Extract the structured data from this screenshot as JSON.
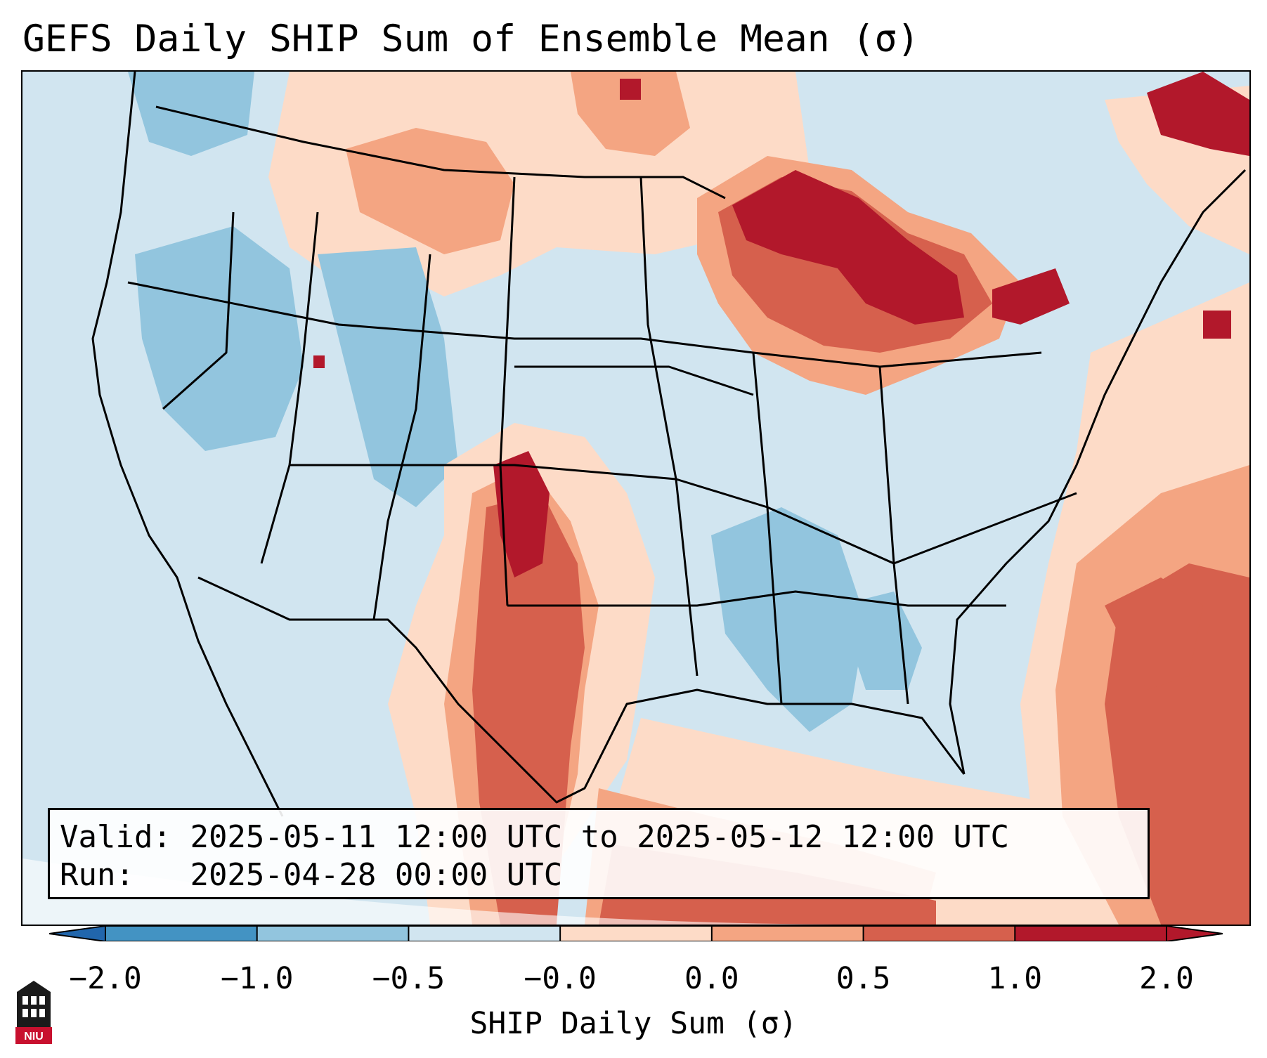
{
  "title": "GEFS Daily SHIP Sum of Ensemble Mean (σ)",
  "info": {
    "valid_label": "Valid:",
    "valid_value": "2025-05-11 12:00 UTC to 2025-05-12 12:00 UTC",
    "run_label": "Run:",
    "run_value": "2025-04-28 00:00 UTC"
  },
  "colorbar": {
    "label": "SHIP Daily Sum (σ)",
    "ticks": [
      "−2.0",
      "−1.0",
      "−0.5",
      "−0.0",
      "0.0",
      "0.5",
      "1.0",
      "2.0"
    ],
    "colors": [
      "#4393c3",
      "#92c5de",
      "#d1e5f0",
      "#fddbc7",
      "#f4a582",
      "#d6604d",
      "#b2182b"
    ],
    "extend_low_color": "#2166ac",
    "extend_high_color": "#b2182b"
  },
  "legend_colors": {
    "neutral_negative": "#d1e5f0",
    "mild_negative": "#92c5de",
    "neutral_positive": "#fddbc7",
    "mild_positive": "#f4a582",
    "moderate_positive": "#d6604d",
    "high_positive": "#b2182b"
  },
  "logo": {
    "name": "niu-logo",
    "text": "NIU"
  }
}
